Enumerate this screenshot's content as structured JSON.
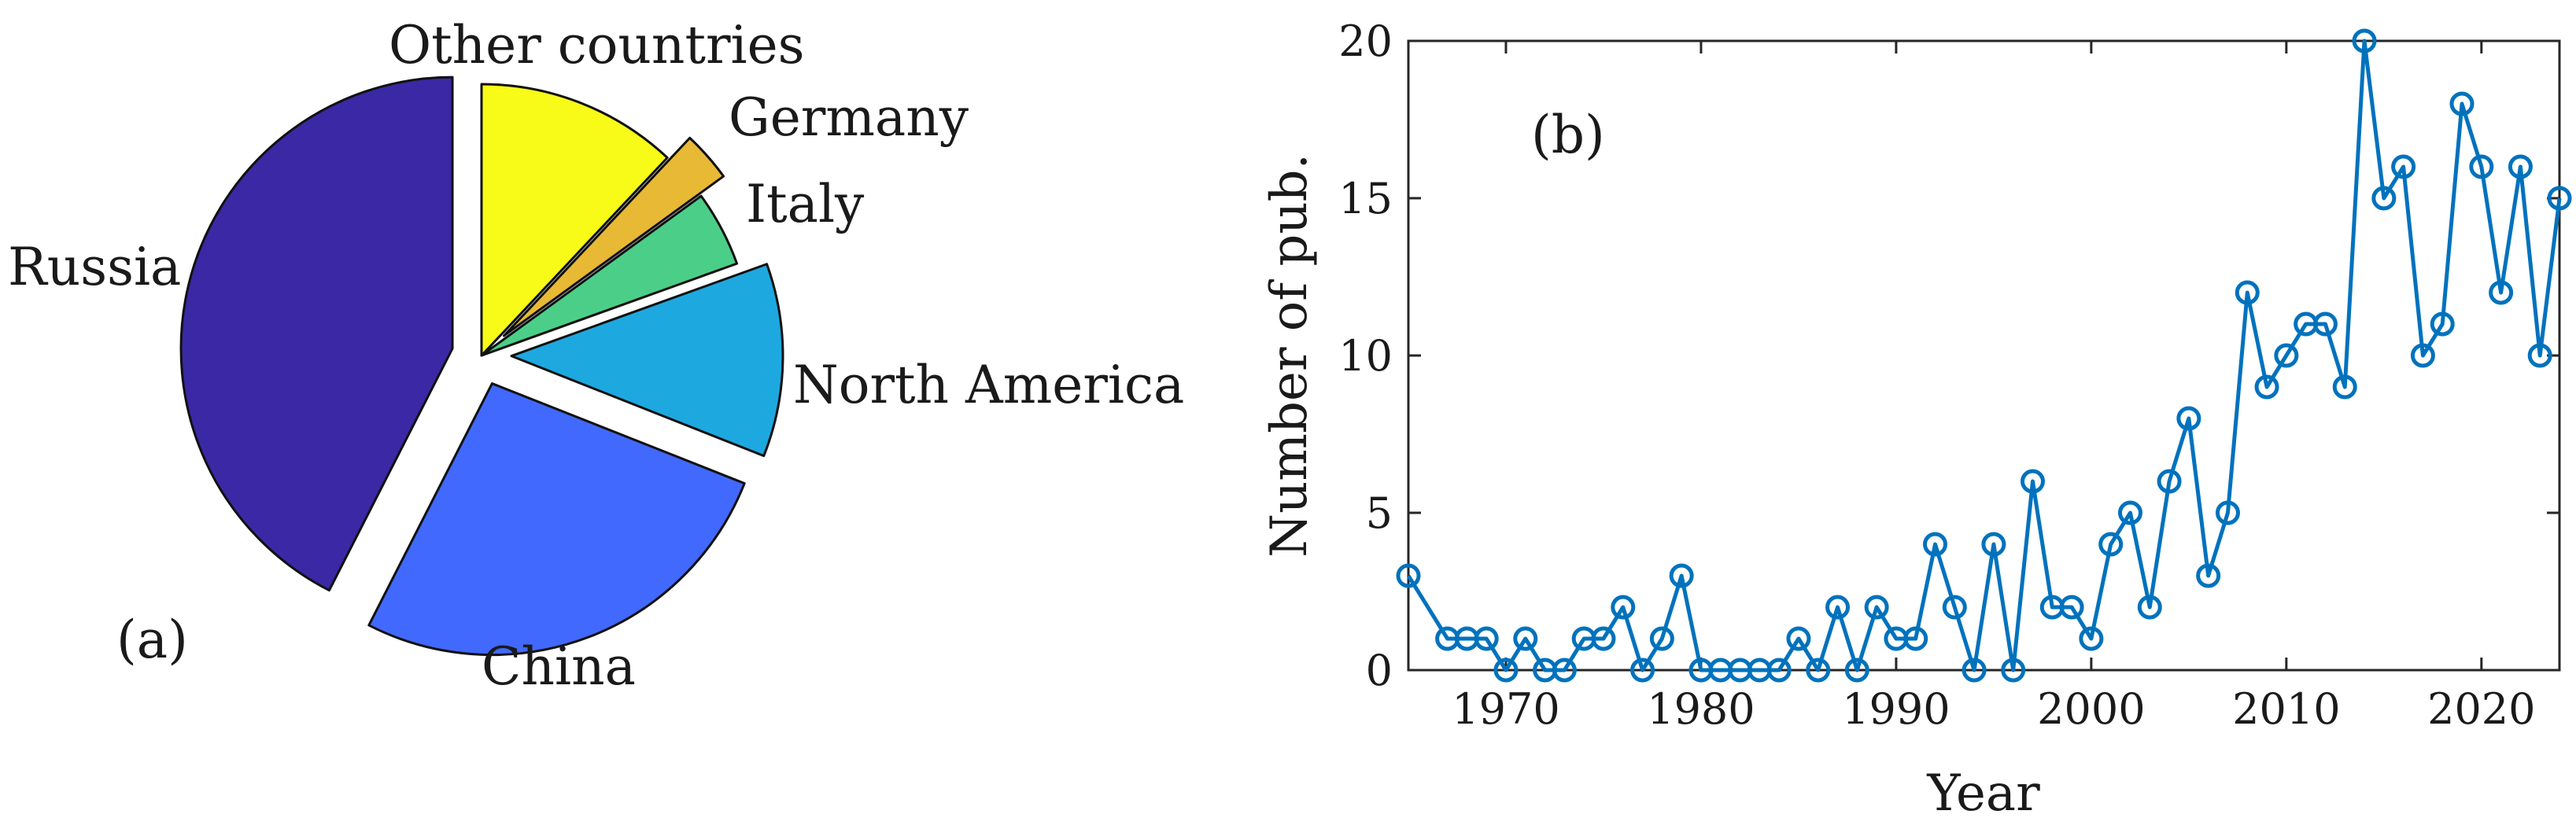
{
  "chart_data": [
    {
      "type": "pie",
      "panel_label": "(a)",
      "slices": [
        {
          "label": "Russia",
          "value": 42.5,
          "color": "#3b28a5",
          "exploded": true
        },
        {
          "label": "China",
          "value": 26.5,
          "color": "#4169fd",
          "exploded": true
        },
        {
          "label": "North America",
          "value": 11.5,
          "color": "#1ea8e0",
          "exploded": true
        },
        {
          "label": "Italy",
          "value": 4.5,
          "color": "#4bcf88",
          "exploded": false
        },
        {
          "label": "Germany",
          "value": 3.0,
          "color": "#e8b935",
          "exploded": true
        },
        {
          "label": "Other countries",
          "value": 12.0,
          "color": "#f8fa17",
          "exploded": false
        }
      ]
    },
    {
      "type": "line",
      "panel_label": "(b)",
      "xlabel": "Year",
      "ylabel": "Number of pub.",
      "xlim": [
        1965,
        2024
      ],
      "ylim": [
        0,
        20
      ],
      "xticks": [
        1970,
        1980,
        1990,
        2000,
        2010,
        2020
      ],
      "yticks": [
        0,
        5,
        10,
        15,
        20
      ],
      "color": "#0072bd",
      "marker": "circle",
      "x": [
        1965,
        1967,
        1968,
        1969,
        1970,
        1971,
        1972,
        1973,
        1974,
        1975,
        1976,
        1977,
        1978,
        1979,
        1980,
        1981,
        1982,
        1983,
        1984,
        1985,
        1986,
        1987,
        1988,
        1989,
        1990,
        1991,
        1992,
        1993,
        1994,
        1995,
        1996,
        1997,
        1998,
        1999,
        2000,
        2001,
        2002,
        2003,
        2004,
        2005,
        2006,
        2007,
        2008,
        2009,
        2010,
        2011,
        2012,
        2013,
        2014,
        2015,
        2016,
        2017,
        2018,
        2019,
        2020,
        2021,
        2022,
        2023,
        2024
      ],
      "y": [
        3,
        1,
        1,
        1,
        0,
        1,
        0,
        0,
        1,
        1,
        2,
        0,
        1,
        3,
        0,
        0,
        0,
        0,
        0,
        1,
        0,
        2,
        0,
        2,
        1,
        1,
        4,
        2,
        0,
        4,
        0,
        6,
        2,
        2,
        1,
        4,
        5,
        2,
        6,
        8,
        3,
        5,
        12,
        9,
        10,
        11,
        11,
        9,
        20,
        15,
        16,
        10,
        11,
        18,
        16,
        12,
        16,
        10,
        15
      ]
    }
  ]
}
